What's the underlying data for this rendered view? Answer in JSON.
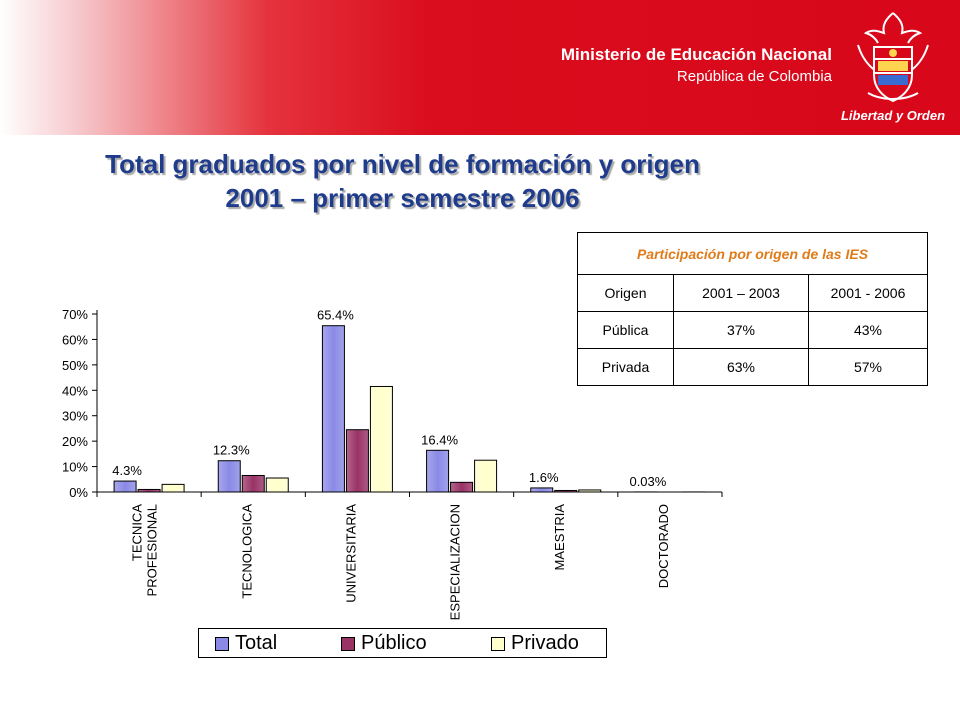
{
  "header": {
    "ministry": "Ministerio de Educación Nacional",
    "country": "República de Colombia",
    "logo_caption": "Libertad y Orden",
    "banner_color": "#d8071a"
  },
  "title": {
    "line1": "Total graduados por nivel de formación y origen",
    "line2": "2001 – primer semestre 2006",
    "color": "#1f3b8c"
  },
  "participation_table": {
    "heading": "Participación por origen de las IES",
    "columns": [
      "Origen",
      "2001 – 2003",
      "2001 - 2006"
    ],
    "rows": [
      [
        "Pública",
        "37%",
        "43%"
      ],
      [
        "Privada",
        "63%",
        "57%"
      ]
    ]
  },
  "chart_data": {
    "type": "bar",
    "categories": [
      "TECNICA PROFESIONAL",
      "TECNOLOGICA",
      "UNIVERSITARIA",
      "ESPECIALIZACION",
      "MAESTRIA",
      "DOCTORADO"
    ],
    "series": [
      {
        "name": "Total",
        "values": [
          4.3,
          12.3,
          65.4,
          16.4,
          1.6,
          0.03
        ],
        "color": "#8a8ae6"
      },
      {
        "name": "Público",
        "values": [
          1.0,
          6.5,
          24.5,
          3.8,
          0.6,
          0.0
        ],
        "color": "#993366"
      },
      {
        "name": "Privado",
        "values": [
          3.0,
          5.5,
          41.5,
          12.5,
          0.8,
          0.02
        ],
        "color": "#ffffcc"
      }
    ],
    "data_labels": [
      "4.3%",
      "12.3%",
      "65.4%",
      "16.4%",
      "1.6%",
      "0.03%"
    ],
    "y_ticks": [
      "0%",
      "10%",
      "20%",
      "30%",
      "40%",
      "50%",
      "60%",
      "70%"
    ],
    "ylim": [
      0,
      70
    ],
    "grid": false,
    "legend_position": "bottom"
  }
}
